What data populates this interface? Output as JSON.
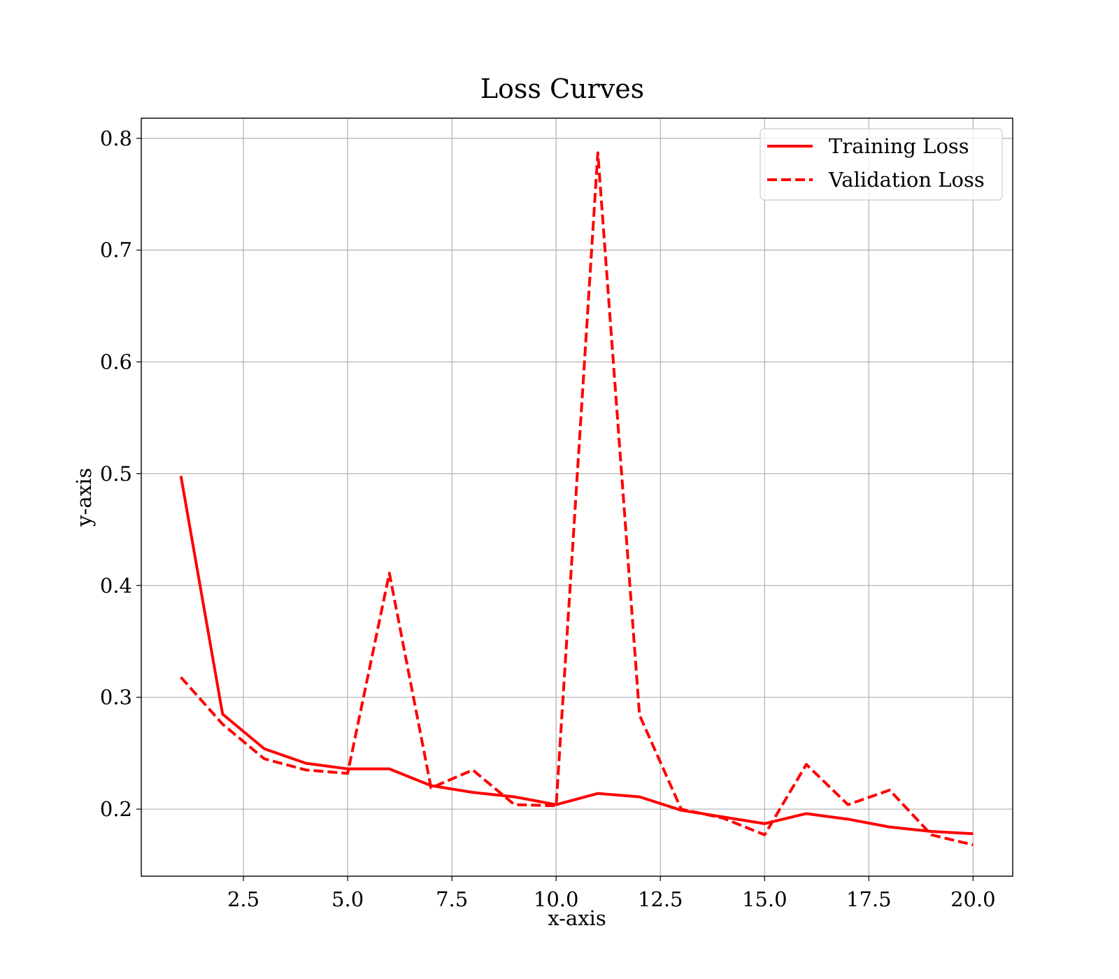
{
  "chart_data": {
    "type": "line",
    "title": "Loss Curves",
    "xlabel": "x-axis",
    "ylabel": "y-axis",
    "x": [
      1,
      2,
      3,
      4,
      5,
      6,
      7,
      8,
      9,
      10,
      11,
      12,
      13,
      14,
      15,
      16,
      17,
      18,
      19,
      20
    ],
    "series": [
      {
        "name": "Training Loss",
        "style": "solid",
        "color": "#ff0000",
        "values": [
          0.498,
          0.285,
          0.254,
          0.241,
          0.236,
          0.236,
          0.221,
          0.215,
          0.211,
          0.204,
          0.214,
          0.211,
          0.199,
          0.193,
          0.187,
          0.196,
          0.191,
          0.184,
          0.18,
          0.178
        ]
      },
      {
        "name": "Validation Loss",
        "style": "dashed",
        "color": "#ff0000",
        "values": [
          0.318,
          0.276,
          0.245,
          0.235,
          0.232,
          0.411,
          0.219,
          0.235,
          0.204,
          0.203,
          0.787,
          0.284,
          0.2,
          0.192,
          0.177,
          0.24,
          0.204,
          0.217,
          0.177,
          0.168
        ]
      }
    ],
    "xlim": [
      0.05,
      20.95
    ],
    "ylim": [
      0.14,
      0.818
    ],
    "xticks": [
      2.5,
      5.0,
      7.5,
      10.0,
      12.5,
      15.0,
      17.5,
      20.0
    ],
    "xtick_labels": [
      "2.5",
      "5.0",
      "7.5",
      "10.0",
      "12.5",
      "15.0",
      "17.5",
      "20.0"
    ],
    "yticks": [
      0.2,
      0.3,
      0.4,
      0.5,
      0.6,
      0.7,
      0.8
    ],
    "ytick_labels": [
      "0.2",
      "0.3",
      "0.4",
      "0.5",
      "0.6",
      "0.7",
      "0.8"
    ],
    "grid": true,
    "legend_position": "top-right"
  }
}
